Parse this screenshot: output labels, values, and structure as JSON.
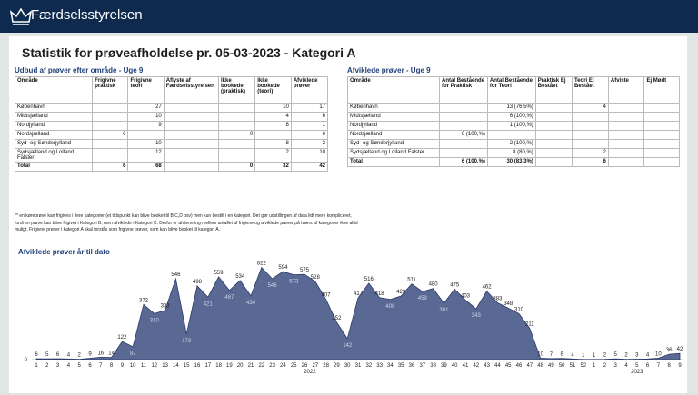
{
  "header": {
    "logo": "Færdselsstyrelsen"
  },
  "title": "Statistik for prøveafholdelse pr. 05-03-2023 - Kategori A",
  "left_table": {
    "title": "Udbud af prøver efter område - Uge 9",
    "columns": [
      "Område",
      "Frigivne praktisk",
      "Frigivne teori",
      "Aflyste af Færdselsstyrelsen",
      "Ikke bookede (praktisk)",
      "Ikke bookede (teori)",
      "Afviklede prøver"
    ],
    "rows": [
      [
        "København",
        null,
        27,
        null,
        null,
        10,
        17
      ],
      [
        "Midtsjælland",
        null,
        10,
        null,
        null,
        4,
        6
      ],
      [
        "Nordjylland",
        null,
        9,
        null,
        null,
        8,
        1
      ],
      [
        "Nordsjælland",
        6,
        null,
        null,
        0,
        null,
        6
      ],
      [
        "Syd- og Sønderjylland",
        null,
        10,
        null,
        null,
        8,
        2
      ],
      [
        "Sydsjælland og Lolland Falster",
        null,
        12,
        null,
        null,
        2,
        10
      ],
      [
        "Total",
        6,
        68,
        null,
        0,
        32,
        42
      ]
    ]
  },
  "right_table": {
    "title": "Afviklede prøver - Uge 9",
    "columns": [
      "Område",
      "Antal Bestående for Praktisk",
      "Antal Bestående for Teori",
      "Praktisk Ej Bestået",
      "Teori Ej Bestået",
      "Afviste",
      "Ej Mødt"
    ],
    "rows": [
      [
        "København",
        null,
        "13 (76,5%)",
        null,
        4,
        null,
        null
      ],
      [
        "Midtsjælland",
        null,
        "6 (100,%)",
        null,
        null,
        null,
        null
      ],
      [
        "Nordjylland",
        null,
        "1 (100,%)",
        null,
        null,
        null,
        null
      ],
      [
        "Nordsjælland",
        "6 (100,%)",
        null,
        null,
        null,
        null,
        null
      ],
      [
        "Syd- og Sønderjylland",
        null,
        "2 (100,%)",
        null,
        null,
        null,
        null
      ],
      [
        "Sydsjælland og Lolland Falster",
        null,
        "8 (80,%)",
        null,
        2,
        null,
        null
      ],
      [
        "Total",
        "6 (100,%)",
        "30 (83,3%)",
        null,
        6,
        null,
        null
      ]
    ]
  },
  "footnote": "** en køreprøve kan frigives i flere kategorier (et tidspunkt kan blive booket til B,C,D osv) men kun bestilt i en kategori. Det gør udstillingen af data lidt mere kompliceret, fordi en prøve kan blive frigivet i Kategori B, men afviklede i Kategori C. Derfor er afstemning mellem antallet af frigivne og afviklede prøver på tværs af kategorier ikke altid muligt. Frigivne prøver i kategori A skal forstås som frigivne prøver, som kan blive booket til kategori A.",
  "chart_data": {
    "type": "area",
    "title": "Afviklede prøver år til dato",
    "categories": [
      "1",
      "2",
      "3",
      "4",
      "5",
      "6",
      "7",
      "8",
      "9",
      "10",
      "11",
      "12",
      "13",
      "14",
      "15",
      "16",
      "17",
      "18",
      "19",
      "20",
      "21",
      "22",
      "23",
      "24",
      "25",
      "26",
      "27",
      "28",
      "29",
      "30",
      "31",
      "32",
      "33",
      "34",
      "35",
      "36",
      "37",
      "38",
      "39",
      "40",
      "41",
      "42",
      "43",
      "44",
      "45",
      "46",
      "47",
      "48",
      "49",
      "50",
      "51",
      "52",
      "1",
      "2",
      "3",
      "4",
      "5",
      "6",
      "7",
      "8",
      "9"
    ],
    "year_labels": [
      "2022",
      "2023"
    ],
    "series": [
      {
        "name": "Afviklede prøver",
        "color": "#5a6994",
        "values": [
          6,
          5,
          6,
          4,
          2,
          9,
          16,
          14,
          122,
          87,
          372,
          310,
          333,
          546,
          173,
          498,
          421,
          559,
          467,
          534,
          430,
          622,
          546,
          594,
          573,
          575,
          528,
          407,
          252,
          142,
          417,
          516,
          418,
          406,
          429,
          511,
          459,
          480,
          381,
          475,
          403,
          343,
          462,
          383,
          348,
          310,
          211,
          10,
          7,
          8,
          4,
          1,
          1,
          2,
          5,
          2,
          3,
          4,
          10,
          36,
          42
        ]
      }
    ],
    "ylim": [
      0,
      650
    ],
    "yticks": [
      0
    ]
  }
}
